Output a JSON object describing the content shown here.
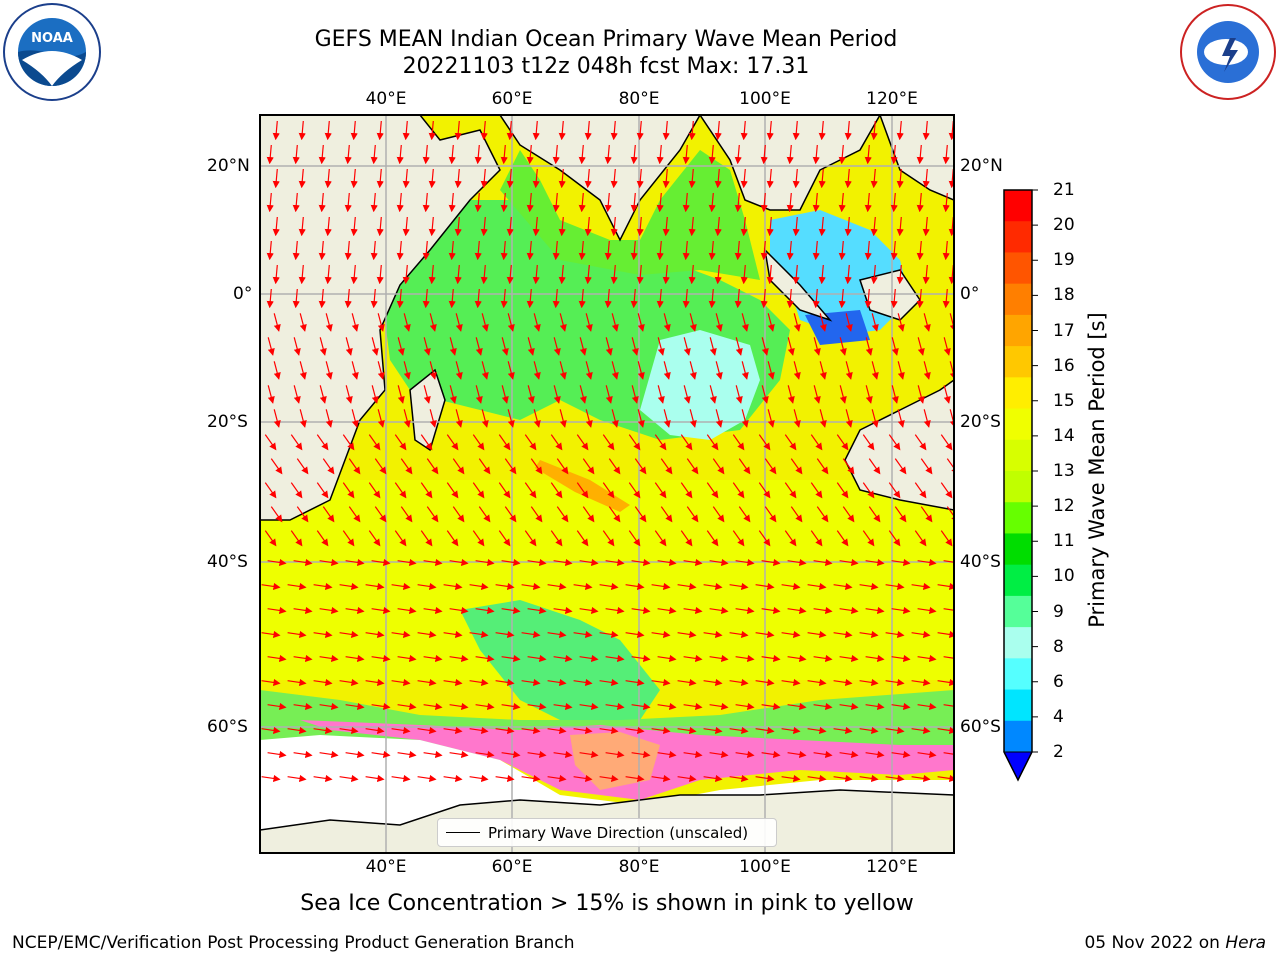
{
  "title": {
    "line1": "GEFS MEAN Indian Ocean Primary Wave Mean Period",
    "line2": "20221103 t12z 048h fcst   Max: 17.31"
  },
  "logos": {
    "left": "noaa-logo",
    "right": "nws-logo"
  },
  "map": {
    "lon_labels": [
      "40°E",
      "60°E",
      "80°E",
      "100°E",
      "120°E"
    ],
    "lat_labels": [
      "20°N",
      "0°",
      "20°S",
      "40°S",
      "60°S"
    ],
    "legend_text": "Primary Wave Direction (unscaled)"
  },
  "colorbar": {
    "label": "Primary Wave Mean Period [s]",
    "ticks": [
      "21",
      "20",
      "19",
      "18",
      "17",
      "16",
      "15",
      "14",
      "13",
      "12",
      "11",
      "10",
      "9",
      "8",
      "6",
      "4",
      "2"
    ],
    "colors": [
      "#ff0000",
      "#ff2a00",
      "#ff5500",
      "#ff7f00",
      "#ffa500",
      "#ffc800",
      "#ffee00",
      "#f0ff00",
      "#d7ff00",
      "#c0ff00",
      "#66ff00",
      "#00dd00",
      "#00ee44",
      "#55ff99",
      "#aaffee",
      "#55ffff",
      "#00e5ff",
      "#0088ff"
    ],
    "extend_color": "#0000ff"
  },
  "caption": "Sea Ice Concentration > 15% is shown in pink to yellow",
  "footer": {
    "left": "NCEP/EMC/Verification Post Processing Product Generation Branch",
    "right_date": "05 Nov 2022 on ",
    "right_host": "Hera"
  }
}
